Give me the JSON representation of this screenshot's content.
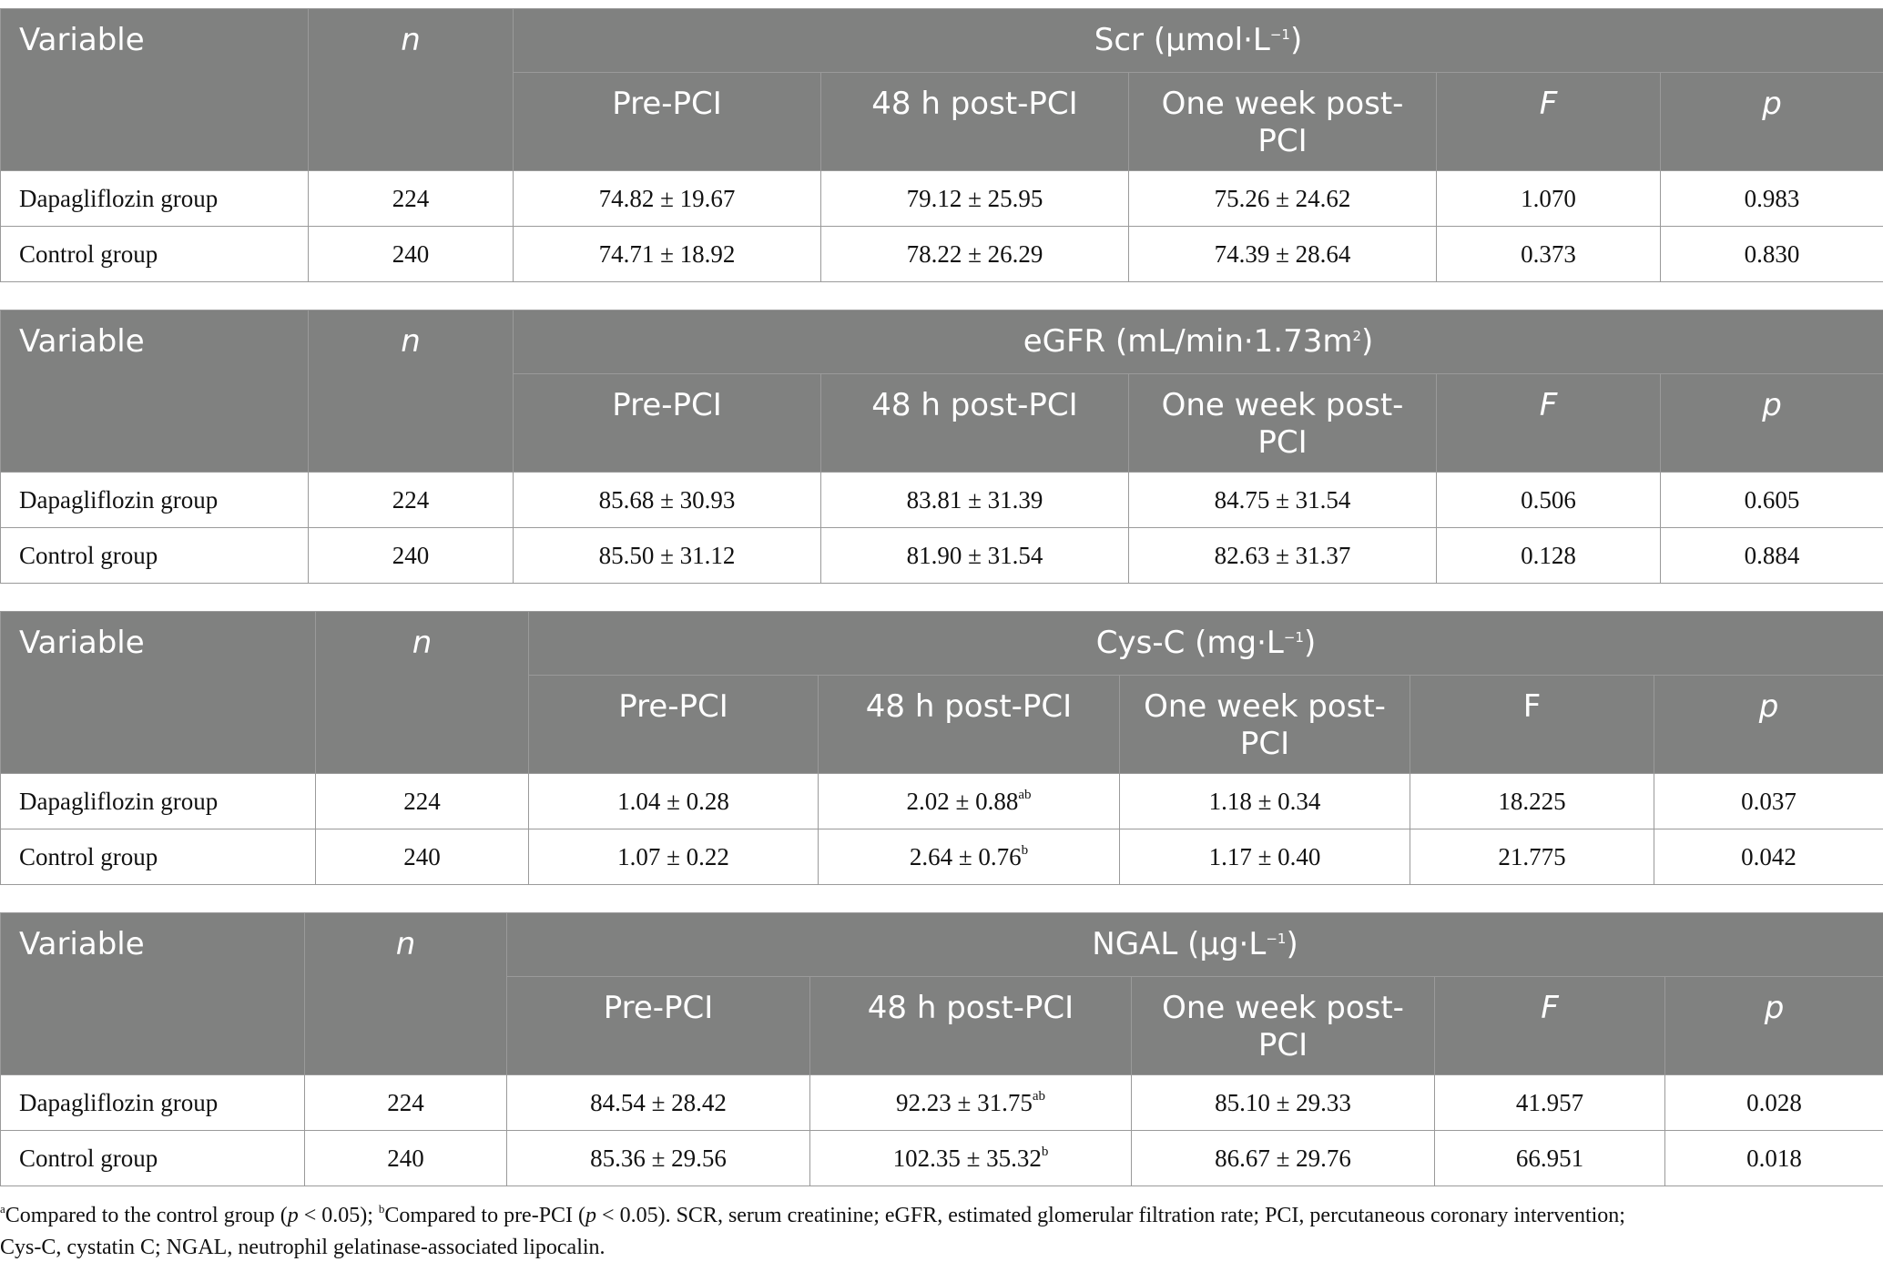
{
  "tables": [
    {
      "var_label": "Variable",
      "n_label": "n",
      "title": "Scr (µmol·L",
      "title_sup": "−1",
      "title_end": ")",
      "cols": [
        "Pre-PCI",
        "48 h post-PCI",
        "One week post-PCI",
        "F",
        "p"
      ],
      "rows": [
        {
          "group": "Dapagliflozin group",
          "n": "224",
          "pre": "74.82 ± 19.67",
          "h48": "79.12 ± 25.95",
          "h48_sup": "",
          "week": "75.26 ± 24.62",
          "f": "1.070",
          "p": "0.983"
        },
        {
          "group": "Control group",
          "n": "240",
          "pre": "74.71 ± 18.92",
          "h48": "78.22 ± 26.29",
          "h48_sup": "",
          "week": "74.39 ± 28.64",
          "f": "0.373",
          "p": "0.830"
        }
      ]
    },
    {
      "var_label": "Variable",
      "n_label": "n",
      "title": "eGFR (mL/min·1.73m",
      "title_sup": "2",
      "title_end": ")",
      "cols": [
        "Pre-PCI",
        "48 h post-PCI",
        "One week post-PCI",
        "F",
        "p"
      ],
      "rows": [
        {
          "group": "Dapagliflozin group",
          "n": "224",
          "pre": "85.68 ± 30.93",
          "h48": "83.81 ± 31.39",
          "h48_sup": "",
          "week": "84.75 ± 31.54",
          "f": "0.506",
          "p": "0.605"
        },
        {
          "group": "Control group",
          "n": "240",
          "pre": "85.50 ± 31.12",
          "h48": "81.90 ± 31.54",
          "h48_sup": "",
          "week": "82.63 ± 31.37",
          "f": "0.128",
          "p": "0.884"
        }
      ]
    },
    {
      "var_label": "Variable",
      "n_label": "n",
      "title": "Cys-C (mg·L",
      "title_sup": "−1",
      "title_end": ")",
      "cols": [
        "Pre-PCI",
        "48 h post-PCI",
        "One week post-PCI",
        "F",
        "p"
      ],
      "rows": [
        {
          "group": "Dapagliflozin group",
          "n": "224",
          "pre": "1.04 ± 0.28",
          "h48": "2.02 ± 0.88",
          "h48_sup": "ab",
          "week": "1.18 ± 0.34",
          "f": "18.225",
          "p": "0.037"
        },
        {
          "group": "Control group",
          "n": "240",
          "pre": "1.07 ± 0.22",
          "h48": "2.64 ± 0.76",
          "h48_sup": "b",
          "week": "1.17 ± 0.40",
          "f": "21.775",
          "p": "0.042"
        }
      ]
    },
    {
      "var_label": "Variable",
      "n_label": "n",
      "title": "NGAL (µg·L",
      "title_sup": "−1",
      "title_end": ")",
      "cols": [
        "Pre-PCI",
        "48 h post-PCI",
        "One week post-PCI",
        "F",
        "p"
      ],
      "rows": [
        {
          "group": "Dapagliflozin group",
          "n": "224",
          "pre": "84.54 ± 28.42",
          "h48": "92.23 ± 31.75",
          "h48_sup": "ab",
          "week": "85.10 ± 29.33",
          "f": "41.957",
          "p": "0.028"
        },
        {
          "group": "Control group",
          "n": "240",
          "pre": "85.36 ± 29.56",
          "h48": "102.35 ± 35.32",
          "h48_sup": "b",
          "week": "86.67 ± 29.76",
          "f": "66.951",
          "p": "0.018"
        }
      ]
    }
  ],
  "footnote": {
    "a_mark": "a",
    "a_text": "Compared to the control group (",
    "a_p": "p",
    "a_rest": " < 0.05); ",
    "b_mark": "b",
    "b_text": "Compared to pre-PCI (",
    "b_p": "p",
    "b_rest": " < 0.05). SCR, serum creatinine; eGFR, estimated glomerular filtration rate; PCI, percutaneous coronary intervention;",
    "line2": "Cys-C, cystatin C; NGAL, neutrophil gelatinase-associated lipocalin."
  }
}
